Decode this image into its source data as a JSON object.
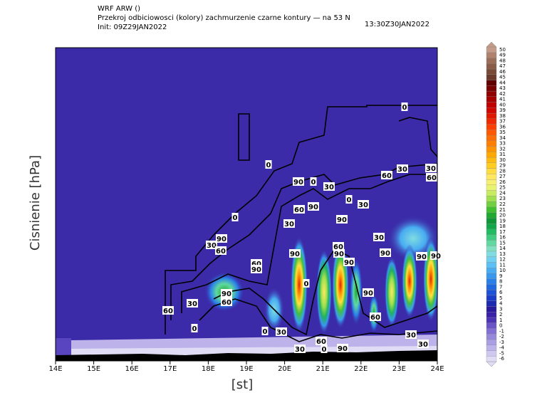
{
  "chart_data": {
    "type": "cross-section",
    "title": "WRF ARW ()",
    "subtitle": "Przekroj odbiciowosci (kolory) zachmurzenie czarne kontury — na 53 N",
    "init": "Init: 09Z29JAN2022",
    "valid": "13:30Z30JAN2022",
    "ylabel": "Cisnienie [hPa]",
    "xlabel": "[st]",
    "xlim": [
      14,
      24
    ],
    "xticks": [
      {
        "value": 14,
        "label": "14E"
      },
      {
        "value": 15,
        "label": "15E"
      },
      {
        "value": 16,
        "label": "16E"
      },
      {
        "value": 17,
        "label": "17E"
      },
      {
        "value": 18,
        "label": "18E"
      },
      {
        "value": 19,
        "label": "19E"
      },
      {
        "value": 20,
        "label": "20E"
      },
      {
        "value": 21,
        "label": "21E"
      },
      {
        "value": 22,
        "label": "22E"
      },
      {
        "value": 23,
        "label": "23E"
      },
      {
        "value": 24,
        "label": "24E"
      }
    ],
    "contour_labels": [
      0,
      0,
      0,
      0,
      0,
      0,
      0,
      0,
      0,
      30,
      30,
      30,
      30,
      30,
      30,
      30,
      30,
      30,
      30,
      30,
      30,
      60,
      60,
      60,
      60,
      60,
      60,
      60,
      60,
      60,
      60,
      90,
      90,
      90,
      90,
      90,
      90,
      90,
      90,
      90,
      90,
      90,
      90,
      90,
      90
    ],
    "colorbar": {
      "ticks": [
        -6,
        -5,
        -4,
        -3,
        -2,
        -1,
        0,
        1,
        2,
        3,
        4,
        5,
        6,
        7,
        8,
        9,
        10,
        11,
        12,
        13,
        14,
        15,
        16,
        17,
        18,
        19,
        20,
        21,
        22,
        23,
        24,
        25,
        26,
        27,
        28,
        29,
        30,
        31,
        32,
        33,
        34,
        35,
        36,
        37,
        38,
        39,
        40,
        41,
        42,
        43,
        44,
        45,
        46,
        47,
        48,
        49,
        50
      ],
      "colors": [
        "#e0dcf5",
        "#cfc8f0",
        "#bdb3ea",
        "#aa9fe4",
        "#9788dc",
        "#8270d4",
        "#6a55c8",
        "#4c34b5",
        "#3a22a8",
        "#2a1a9c",
        "#1e2ab0",
        "#1a3cc8",
        "#1c52d8",
        "#2068e0",
        "#2a80e8",
        "#3898ee",
        "#48acf2",
        "#5cc0f4",
        "#70d0f0",
        "#80dce0",
        "#80e0c0",
        "#60d8a0",
        "#40cc80",
        "#20bc60",
        "#10a848",
        "#109838",
        "#20a830",
        "#40c030",
        "#70d040",
        "#a0e050",
        "#c8ec60",
        "#e8f470",
        "#f8f070",
        "#ffe860",
        "#ffdc40",
        "#ffcc20",
        "#ffbc10",
        "#ffa800",
        "#ff9400",
        "#ff8000",
        "#ff6c00",
        "#ff5800",
        "#ff4000",
        "#f02800",
        "#e01800",
        "#d00800",
        "#c00000",
        "#a80000",
        "#900000",
        "#780000",
        "#600000",
        "#6a3a2a",
        "#7a4a38",
        "#8a5c48",
        "#9c6e5a",
        "#b0826e",
        "#c49a88"
      ]
    }
  }
}
